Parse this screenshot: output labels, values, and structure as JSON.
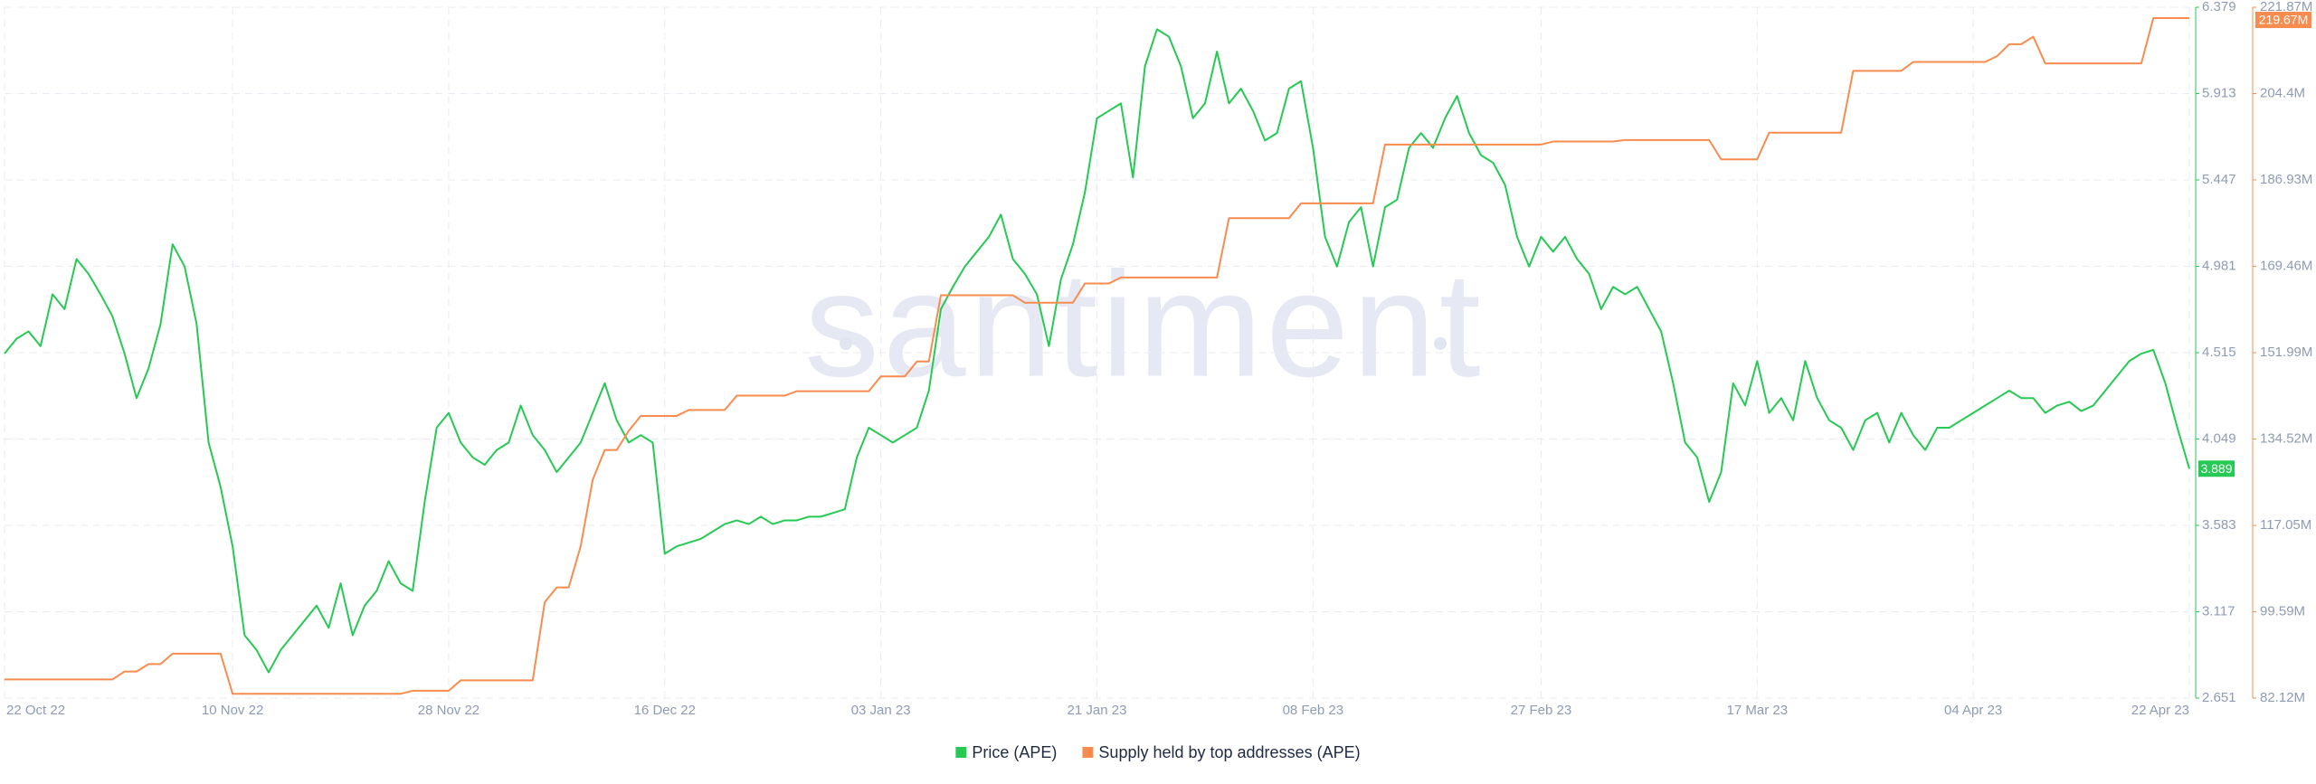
{
  "chart_data": {
    "type": "line",
    "watermark": "santiment",
    "grid": true,
    "categories": [
      "22 Oct 22",
      null,
      null,
      null,
      null,
      null,
      null,
      null,
      null,
      null,
      null,
      null,
      null,
      null,
      null,
      null,
      null,
      null,
      null,
      "10 Nov 22",
      null,
      null,
      null,
      null,
      null,
      null,
      null,
      null,
      null,
      null,
      null,
      null,
      null,
      null,
      null,
      null,
      null,
      "28 Nov 22",
      null,
      null,
      null,
      null,
      null,
      null,
      null,
      null,
      null,
      null,
      null,
      null,
      null,
      null,
      null,
      null,
      null,
      "16 Dec 22",
      null,
      null,
      null,
      null,
      null,
      null,
      null,
      null,
      null,
      null,
      null,
      null,
      null,
      null,
      null,
      null,
      null,
      "03 Jan 23",
      null,
      null,
      null,
      null,
      null,
      null,
      null,
      null,
      null,
      null,
      null,
      null,
      null,
      null,
      null,
      null,
      null,
      "21 Jan 23",
      null,
      null,
      null,
      null,
      null,
      null,
      null,
      null,
      null,
      null,
      null,
      null,
      null,
      null,
      null,
      null,
      null,
      "08 Feb 23",
      null,
      null,
      null,
      null,
      null,
      null,
      null,
      null,
      null,
      null,
      null,
      null,
      null,
      null,
      null,
      null,
      null,
      null,
      "27 Feb 23",
      null,
      null,
      null,
      null,
      null,
      null,
      null,
      null,
      null,
      null,
      null,
      null,
      null,
      null,
      null,
      null,
      null,
      "17 Mar 23",
      null,
      null,
      null,
      null,
      null,
      null,
      null,
      null,
      null,
      null,
      null,
      null,
      null,
      null,
      null,
      null,
      null,
      "04 Apr 23",
      null,
      null,
      null,
      null,
      null,
      null,
      null,
      null,
      null,
      null,
      null,
      null,
      null,
      null,
      null,
      null,
      null,
      "22 Apr 23"
    ],
    "ylim": [
      2.651,
      6.379
    ],
    "yticks": [
      2.651,
      3.117,
      3.583,
      4.049,
      4.515,
      4.981,
      5.447,
      5.913,
      6.379
    ],
    "y2lim": [
      82120000,
      221870000
    ],
    "y2ticks": [
      {
        "value": 82120000,
        "label": "82.12M"
      },
      {
        "value": 99590000,
        "label": "99.59M"
      },
      {
        "value": 117050000,
        "label": "117.05M"
      },
      {
        "value": 134520000,
        "label": "134.52M"
      },
      {
        "value": 151990000,
        "label": "151.99M"
      },
      {
        "value": 169460000,
        "label": "169.46M"
      },
      {
        "value": 186930000,
        "label": "186.93M"
      },
      {
        "value": 204400000,
        "label": "204.4M"
      },
      {
        "value": 221870000,
        "label": "221.87M"
      }
    ],
    "series": [
      {
        "name": "Price (APE)",
        "color": "#26c953",
        "values": [
          4.51,
          4.59,
          4.63,
          4.55,
          4.83,
          4.75,
          5.02,
          4.94,
          4.83,
          4.71,
          4.51,
          4.27,
          4.43,
          4.67,
          5.1,
          4.98,
          4.67,
          4.03,
          3.79,
          3.47,
          2.99,
          2.91,
          2.79,
          2.91,
          2.99,
          3.07,
          3.15,
          3.03,
          3.27,
          2.99,
          3.15,
          3.23,
          3.39,
          3.27,
          3.23,
          3.71,
          4.11,
          4.19,
          4.03,
          3.95,
          3.91,
          3.99,
          4.03,
          4.23,
          4.07,
          3.99,
          3.87,
          3.95,
          4.03,
          4.19,
          4.35,
          4.15,
          4.03,
          4.07,
          4.03,
          3.43,
          3.47,
          3.49,
          3.51,
          3.55,
          3.59,
          3.61,
          3.59,
          3.63,
          3.59,
          3.61,
          3.61,
          3.63,
          3.63,
          3.65,
          3.67,
          3.95,
          4.11,
          4.07,
          4.03,
          4.07,
          4.11,
          4.31,
          4.75,
          4.87,
          4.98,
          5.06,
          5.14,
          5.26,
          5.02,
          4.94,
          4.83,
          4.55,
          4.91,
          5.1,
          5.38,
          5.78,
          5.82,
          5.86,
          5.46,
          6.06,
          6.26,
          6.22,
          6.06,
          5.78,
          5.86,
          6.14,
          5.86,
          5.94,
          5.82,
          5.66,
          5.7,
          5.94,
          5.98,
          5.62,
          5.14,
          4.98,
          5.22,
          5.3,
          4.98,
          5.3,
          5.34,
          5.62,
          5.7,
          5.62,
          5.78,
          5.9,
          5.7,
          5.58,
          5.54,
          5.42,
          5.14,
          4.98,
          5.14,
          5.06,
          5.14,
          5.02,
          4.94,
          4.75,
          4.87,
          4.83,
          4.87,
          4.75,
          4.63,
          4.35,
          4.03,
          3.95,
          3.71,
          3.87,
          4.35,
          4.23,
          4.47,
          4.19,
          4.27,
          4.15,
          4.47,
          4.27,
          4.15,
          4.11,
          3.99,
          4.15,
          4.19,
          4.03,
          4.19,
          4.07,
          3.99,
          4.11,
          4.11,
          4.15,
          4.19,
          4.23,
          4.27,
          4.31,
          4.27,
          4.27,
          4.19,
          4.23,
          4.25,
          4.2,
          4.23,
          4.31,
          4.39,
          4.47,
          4.51,
          4.53,
          4.35,
          4.11,
          3.889
        ]
      },
      {
        "name": "Supply held by top addresses (APE)",
        "color": "#f88c4f",
        "axis": "y2",
        "values": [
          85900000,
          85900000,
          85900000,
          85900000,
          85900000,
          85900000,
          85900000,
          85900000,
          85900000,
          85900000,
          87500000,
          87500000,
          89000000,
          89000000,
          91100000,
          91100000,
          91100000,
          91100000,
          91100000,
          83000000,
          83000000,
          83000000,
          83000000,
          83000000,
          83000000,
          83000000,
          83000000,
          83000000,
          83000000,
          83000000,
          83000000,
          83000000,
          83000000,
          83000000,
          83600000,
          83600000,
          83600000,
          83600000,
          85700000,
          85700000,
          85700000,
          85700000,
          85700000,
          85700000,
          85700000,
          101500000,
          104500000,
          104500000,
          112900000,
          126300000,
          132300000,
          132300000,
          136200000,
          139200000,
          139200000,
          139200000,
          139200000,
          140400000,
          140400000,
          140400000,
          140400000,
          143300000,
          143300000,
          143300000,
          143300000,
          143300000,
          144200000,
          144200000,
          144200000,
          144200000,
          144200000,
          144200000,
          144200000,
          147200000,
          147200000,
          147200000,
          150200000,
          150200000,
          163600000,
          163600000,
          163600000,
          163600000,
          163600000,
          163600000,
          163600000,
          162100000,
          162100000,
          162100000,
          162100000,
          162100000,
          166000000,
          166000000,
          166000000,
          167200000,
          167200000,
          167200000,
          167200000,
          167200000,
          167200000,
          167200000,
          167200000,
          167200000,
          179200000,
          179200000,
          179200000,
          179200000,
          179200000,
          179200000,
          182200000,
          182200000,
          182200000,
          182200000,
          182200000,
          182200000,
          182200000,
          194100000,
          194100000,
          194100000,
          194100000,
          194100000,
          194100000,
          194100000,
          194100000,
          194100000,
          194100000,
          194100000,
          194100000,
          194100000,
          194100000,
          194700000,
          194700000,
          194700000,
          194700000,
          194700000,
          194700000,
          195000000,
          195000000,
          195000000,
          195000000,
          195000000,
          195000000,
          195000000,
          195000000,
          191100000,
          191100000,
          191100000,
          191100000,
          196500000,
          196500000,
          196500000,
          196500000,
          196500000,
          196500000,
          196500000,
          209000000,
          209000000,
          209000000,
          209000000,
          209000000,
          210800000,
          210800000,
          210800000,
          210800000,
          210800000,
          210800000,
          210800000,
          212000000,
          214400000,
          214400000,
          215900000,
          210500000,
          210500000,
          210500000,
          210500000,
          210500000,
          210500000,
          210500000,
          210500000,
          210500000,
          219670000,
          219670000,
          219670000,
          219670000
        ],
        "value_labels": [
          null,
          null,
          null,
          null,
          null,
          null,
          null,
          null,
          null,
          null,
          null,
          null,
          null,
          null,
          null,
          null,
          null,
          null,
          null,
          null,
          null,
          null,
          null,
          null,
          null,
          null,
          null,
          null,
          null,
          null,
          null,
          null,
          null,
          null,
          null,
          null,
          null,
          null,
          null,
          null,
          null,
          null,
          null,
          null,
          null,
          null,
          null,
          null,
          null,
          null,
          null,
          null,
          null,
          null,
          null,
          null,
          null,
          null,
          null,
          null,
          null,
          null,
          null,
          null,
          null,
          null,
          null,
          null,
          null,
          null,
          null,
          null,
          null,
          null,
          null,
          null,
          null,
          null,
          null,
          null,
          null,
          null,
          null,
          null,
          null,
          null,
          null,
          null,
          null,
          null,
          null,
          null,
          null,
          null,
          null,
          null,
          null,
          null,
          null,
          null,
          null,
          null,
          null,
          null,
          null,
          null,
          null,
          null,
          null,
          null,
          null,
          null,
          null,
          null,
          null,
          null,
          null,
          null,
          null,
          null,
          null,
          null,
          null,
          null,
          null,
          null,
          null,
          null,
          null,
          null,
          null,
          null,
          null,
          null,
          null,
          null,
          null,
          null,
          null,
          null,
          null,
          null,
          null,
          null,
          null,
          null,
          null,
          null,
          null,
          null,
          null,
          null,
          null,
          null,
          null,
          null,
          null,
          null,
          null,
          null,
          null,
          null,
          null,
          null,
          null,
          null,
          null,
          null,
          null,
          null,
          null,
          null,
          null,
          null,
          null,
          null,
          null,
          null,
          null,
          null,
          null,
          null,
          "219.67M"
        ]
      }
    ]
  }
}
